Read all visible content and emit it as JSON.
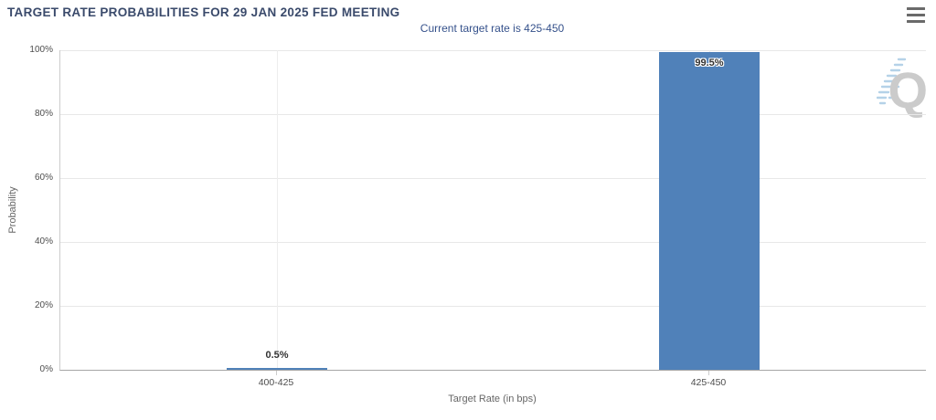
{
  "header": {
    "title": "TARGET RATE PROBABILITIES FOR 29 JAN 2025 FED MEETING",
    "menu_icon": "hamburger-menu-icon"
  },
  "chart_data": {
    "type": "bar",
    "title": "TARGET RATE PROBABILITIES FOR 29 JAN 2025 FED MEETING",
    "subtitle": "Current target rate is 425-450",
    "categories": [
      "400-425",
      "425-450"
    ],
    "values": [
      0.5,
      99.5
    ],
    "value_labels": [
      "0.5%",
      "99.5%"
    ],
    "xlabel": "Target Rate (in bps)",
    "ylabel": "Probability",
    "ylim": [
      0,
      100
    ],
    "ytick_values": [
      0,
      20,
      40,
      60,
      80,
      100
    ],
    "ytick_labels": [
      "0%",
      "20%",
      "40%",
      "60%",
      "80%",
      "100%"
    ],
    "bar_color": "#5081b9",
    "grid": true,
    "legend": false
  },
  "watermark": {
    "letter": "Q",
    "dash_color": "#b5d2e8",
    "letter_color": "#cbcbcb"
  },
  "colors": {
    "title": "#3a4a6b",
    "subtitle": "#35518b",
    "axis_text": "#4d4d4d",
    "axis_title": "#666666",
    "gridline": "#e8e8e8",
    "bar": "#5081b9"
  }
}
